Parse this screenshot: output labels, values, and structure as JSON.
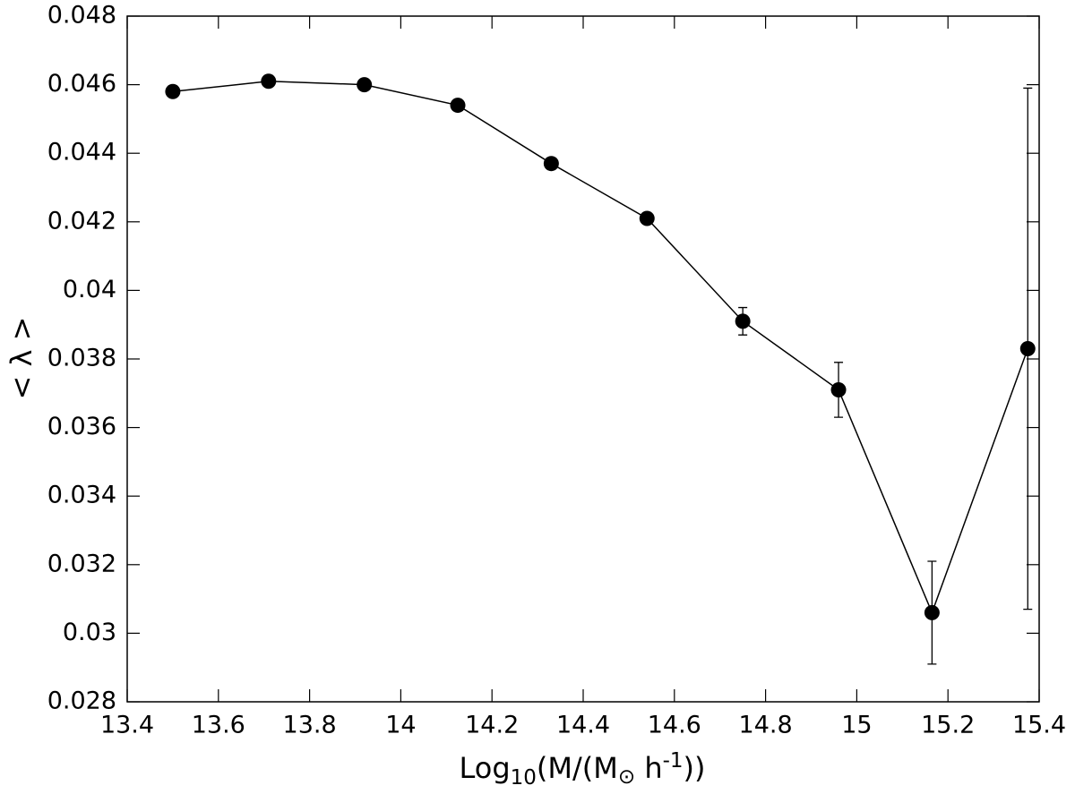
{
  "chart_data": {
    "type": "line",
    "x_label": [
      "Log",
      "10",
      "(M/(M",
      "⊙",
      " h",
      "-1",
      "))"
    ],
    "y_label": "< λ >",
    "x": [
      13.5,
      13.71,
      13.92,
      14.125,
      14.33,
      14.54,
      14.75,
      14.96,
      15.165,
      15.375
    ],
    "series": [
      {
        "color": "#000000",
        "values": [
          0.0458,
          0.0461,
          0.046,
          0.0454,
          0.0437,
          0.0421,
          0.0391,
          0.0371,
          0.0306,
          0.0383
        ],
        "errors": [
          5e-05,
          5e-05,
          5e-05,
          5e-05,
          5e-05,
          0.0001,
          0.0004,
          0.0008,
          0.0015,
          0.0076
        ]
      }
    ],
    "xlim": [
      13.4,
      15.4
    ],
    "xticks": [
      13.4,
      13.6,
      13.8,
      14,
      14.2,
      14.4,
      14.6,
      14.8,
      15,
      15.2,
      15.4
    ],
    "ylim": [
      0.028,
      0.048
    ],
    "yticks": [
      0.028,
      0.03,
      0.032,
      0.034,
      0.036,
      0.038,
      0.04,
      0.042,
      0.044,
      0.046,
      0.048
    ],
    "grid": false
  }
}
